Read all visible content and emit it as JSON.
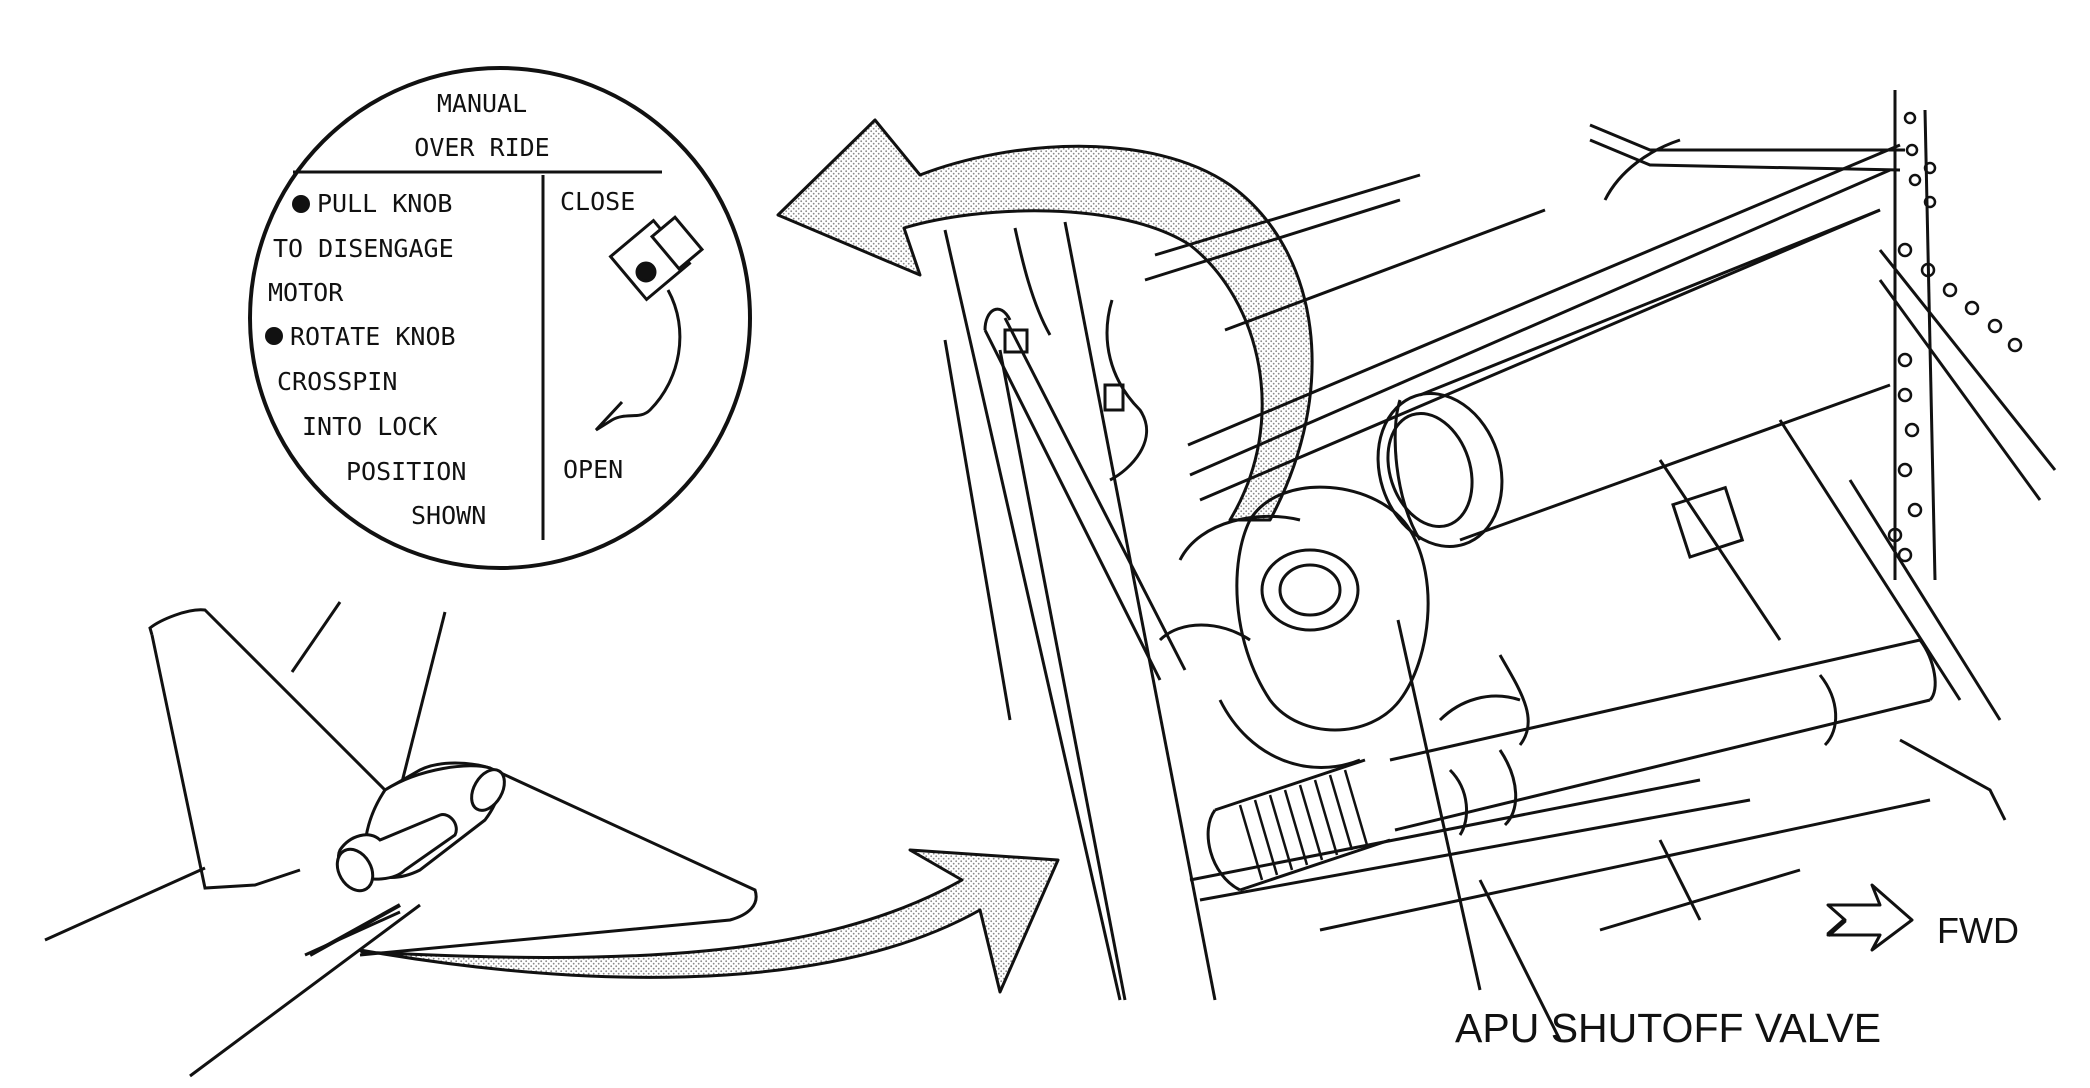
{
  "placard": {
    "title_line1": "MANUAL",
    "title_line2": "OVER RIDE",
    "instructions": [
      "PULL KNOB",
      "TO DISENGAGE",
      "MOTOR",
      "ROTATE KNOB",
      "CROSSPIN",
      "INTO LOCK",
      "POSITION",
      "SHOWN"
    ],
    "close_label": "CLOSE",
    "open_label": "OPEN"
  },
  "labels": {
    "fwd": "FWD",
    "component": "APU SHUTOFF VALVE"
  },
  "colors": {
    "ink": "#111111",
    "arrow_fill": "#d9d9d9",
    "background": "#ffffff"
  }
}
